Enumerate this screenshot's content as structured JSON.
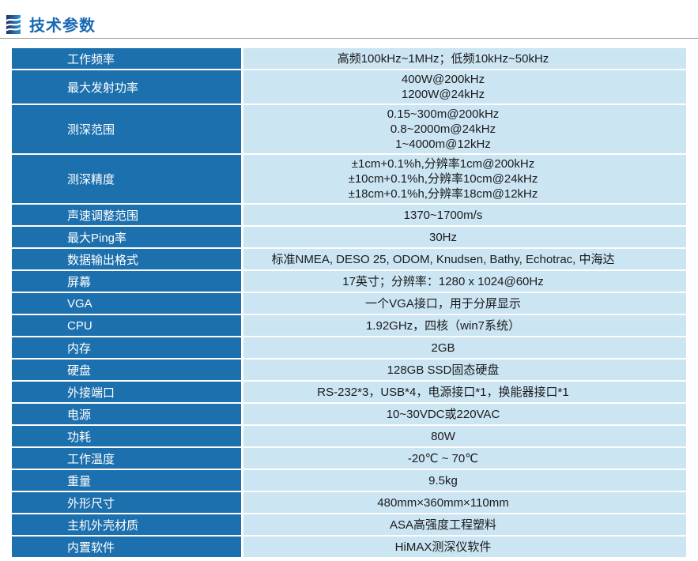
{
  "page": {
    "title": "技术参数"
  },
  "colors": {
    "title_color": "#1769b3",
    "rule_color": "#9b9ba1",
    "label_bg": "#1d70ae",
    "value_bg": "#cbe5f3",
    "icon_dark": "#1f2f62",
    "icon_light": "#2d96d6"
  },
  "table": {
    "rows": [
      {
        "label": "工作频率",
        "lines": [
          "高频100kHz~1MHz；低频10kHz~50kHz"
        ]
      },
      {
        "label": "最大发射功率",
        "lines": [
          "400W@200kHz",
          "1200W@24kHz"
        ]
      },
      {
        "label": "测深范围",
        "lines": [
          "0.15~300m@200kHz",
          "0.8~2000m@24kHz",
          "1~4000m@12kHz"
        ]
      },
      {
        "label": "测深精度",
        "lines": [
          "±1cm+0.1%h,分辨率1cm@200kHz",
          "±10cm+0.1%h,分辨率10cm@24kHz",
          "±18cm+0.1%h,分辨率18cm@12kHz"
        ]
      },
      {
        "label": "声速调整范围",
        "lines": [
          "1370~1700m/s"
        ]
      },
      {
        "label": "最大Ping率",
        "lines": [
          "30Hz"
        ]
      },
      {
        "label": "数据输出格式",
        "lines": [
          "标准NMEA, DESO 25, ODOM, Knudsen, Bathy, Echotrac, 中海达"
        ]
      },
      {
        "label": "屏幕",
        "lines": [
          "17英寸；分辨率：1280 x 1024@60Hz"
        ]
      },
      {
        "label": "VGA",
        "lines": [
          "一个VGA接口，用于分屏显示"
        ]
      },
      {
        "label": "CPU",
        "lines": [
          "1.92GHz，四核（win7系统）"
        ]
      },
      {
        "label": "内存",
        "lines": [
          "2GB"
        ]
      },
      {
        "label": "硬盘",
        "lines": [
          "128GB SSD固态硬盘"
        ]
      },
      {
        "label": "外接端口",
        "lines": [
          "RS-232*3，USB*4，电源接口*1，换能器接口*1"
        ]
      },
      {
        "label": "电源",
        "lines": [
          "10~30VDC或220VAC"
        ]
      },
      {
        "label": "功耗",
        "lines": [
          "80W"
        ]
      },
      {
        "label": "工作温度",
        "lines": [
          "-20℃ ~ 70℃"
        ]
      },
      {
        "label": "重量",
        "lines": [
          "9.5kg"
        ]
      },
      {
        "label": "外形尺寸",
        "lines": [
          "480mm×360mm×110mm"
        ]
      },
      {
        "label": "主机外壳材质",
        "lines": [
          "ASA高强度工程塑料"
        ]
      },
      {
        "label": "内置软件",
        "lines": [
          "HiMAX测深仪软件"
        ]
      }
    ]
  }
}
